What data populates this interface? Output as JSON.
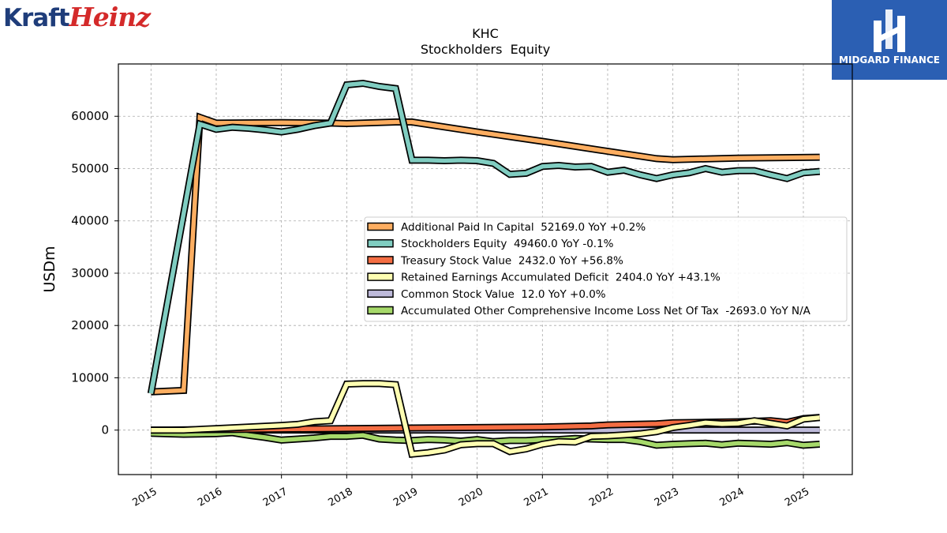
{
  "brand": {
    "left_logo_part1": "Kraft",
    "left_logo_part2": "Heinz",
    "right_logo_text": "MIDGARD FINANCE",
    "left_colors": {
      "kraft": "#1f3d7a",
      "heinz": "#d42a2a"
    },
    "right_bg": "#2b5fb3"
  },
  "chart_data": {
    "type": "line",
    "title": "KHC",
    "subtitle": "Stockholders  Equity",
    "ylabel": "USDm",
    "xlabel": "",
    "xlim": [
      2014.5,
      2025.75
    ],
    "ylim": [
      -8500,
      70000
    ],
    "yticks": [
      0,
      10000,
      20000,
      30000,
      40000,
      50000,
      60000
    ],
    "xticks": [
      "2015",
      "2016",
      "2017",
      "2018",
      "2019",
      "2020",
      "2021",
      "2022",
      "2023",
      "2024",
      "2025"
    ],
    "grid": true,
    "legend_position": "center-right",
    "series": [
      {
        "name": "Additional Paid In Capital  52169.0 YoY +0.2%",
        "color": "#fdae61",
        "x": [
          2015.0,
          2015.5,
          2015.75,
          2016.0,
          2017.0,
          2017.75,
          2018.0,
          2018.75,
          2019.0,
          2020.0,
          2021.0,
          2022.0,
          2022.75,
          2023.0,
          2024.0,
          2025.25
        ],
        "y": [
          7300,
          7600,
          59800,
          58700,
          58800,
          58700,
          58600,
          58900,
          58900,
          57000,
          55200,
          53300,
          51900,
          51700,
          52000,
          52169
        ]
      },
      {
        "name": "Stockholders Equity  49460.0 YoY -0.1%",
        "color": "#80cdc1",
        "x": [
          2015.0,
          2015.75,
          2016.0,
          2016.25,
          2016.5,
          2016.75,
          2017.0,
          2017.25,
          2017.5,
          2017.75,
          2018.0,
          2018.25,
          2018.5,
          2018.75,
          2019.0,
          2019.25,
          2019.5,
          2019.75,
          2020.0,
          2020.25,
          2020.5,
          2020.75,
          2021.0,
          2021.25,
          2021.5,
          2021.75,
          2022.0,
          2022.25,
          2022.5,
          2022.75,
          2023.0,
          2023.25,
          2023.5,
          2023.75,
          2024.0,
          2024.25,
          2024.5,
          2024.75,
          2025.0,
          2025.25
        ],
        "y": [
          7000,
          58500,
          57500,
          57900,
          57700,
          57400,
          57000,
          57500,
          58200,
          58700,
          66000,
          66300,
          65700,
          65300,
          51600,
          51600,
          51500,
          51600,
          51500,
          51000,
          48900,
          49100,
          50400,
          50600,
          50300,
          50400,
          49300,
          49700,
          48800,
          48100,
          48800,
          49200,
          50000,
          49300,
          49600,
          49600,
          48800,
          48100,
          49200,
          49460
        ]
      },
      {
        "name": "Treasury Stock Value  2432.0 YoY +56.8%",
        "color": "#f46d43",
        "x": [
          2015.0,
          2016.0,
          2017.0,
          2018.0,
          2019.0,
          2020.0,
          2021.0,
          2021.75,
          2022.0,
          2022.75,
          2023.0,
          2023.5,
          2024.0,
          2024.5,
          2024.75,
          2025.0,
          2025.25
        ],
        "y": [
          0,
          100,
          200,
          300,
          400,
          500,
          600,
          800,
          1000,
          1200,
          1400,
          1500,
          1600,
          1800,
          1500,
          2200,
          2432
        ]
      },
      {
        "name": "Retained Earnings Accumulated Deficit  2404.0 YoY +43.1%",
        "color": "#ffffb2",
        "x": [
          2015.0,
          2015.5,
          2016.0,
          2016.5,
          2017.0,
          2017.25,
          2017.5,
          2017.75,
          2018.0,
          2018.25,
          2018.5,
          2018.75,
          2019.0,
          2019.25,
          2019.5,
          2019.75,
          2020.0,
          2020.25,
          2020.5,
          2020.75,
          2021.0,
          2021.25,
          2021.5,
          2021.75,
          2022.0,
          2022.25,
          2022.5,
          2022.75,
          2023.0,
          2023.25,
          2023.5,
          2023.75,
          2024.0,
          2024.25,
          2024.5,
          2024.75,
          2025.0,
          2025.25
        ],
        "y": [
          0,
          0,
          300,
          600,
          900,
          1100,
          1600,
          1800,
          8800,
          8900,
          8900,
          8700,
          -4600,
          -4300,
          -3800,
          -2800,
          -2600,
          -2600,
          -4100,
          -3600,
          -2700,
          -2200,
          -2300,
          -1200,
          -1100,
          -900,
          -700,
          -300,
          500,
          900,
          1400,
          1200,
          1300,
          1800,
          1300,
          800,
          2100,
          2404
        ]
      },
      {
        "name": "Common Stock Value  12.0 YoY +0.0%",
        "color": "#bebada",
        "x": [
          2015.0,
          2025.25
        ],
        "y": [
          12,
          12
        ]
      },
      {
        "name": "Accumulated Other Comprehensive Income Loss Net Of Tax  -2693.0 YoY N/A",
        "color": "#a6d96a",
        "x": [
          2015.0,
          2015.5,
          2016.0,
          2016.25,
          2016.5,
          2016.75,
          2017.0,
          2017.25,
          2017.5,
          2017.75,
          2018.0,
          2018.25,
          2018.5,
          2018.75,
          2019.0,
          2019.25,
          2019.5,
          2019.75,
          2020.0,
          2020.25,
          2020.5,
          2020.75,
          2021.0,
          2021.25,
          2021.5,
          2021.75,
          2022.0,
          2022.25,
          2022.5,
          2022.75,
          2023.0,
          2023.25,
          2023.5,
          2023.75,
          2024.0,
          2024.25,
          2024.5,
          2024.75,
          2025.0,
          2025.25
        ],
        "y": [
          -600,
          -800,
          -700,
          -500,
          -1000,
          -1400,
          -1900,
          -1700,
          -1500,
          -1200,
          -1200,
          -1000,
          -1700,
          -1900,
          -2000,
          -1800,
          -1900,
          -2100,
          -1800,
          -2200,
          -2000,
          -2000,
          -1800,
          -1800,
          -1600,
          -1700,
          -1800,
          -1800,
          -2200,
          -2900,
          -2700,
          -2600,
          -2500,
          -2800,
          -2500,
          -2600,
          -2700,
          -2400,
          -2900,
          -2693
        ]
      }
    ]
  }
}
